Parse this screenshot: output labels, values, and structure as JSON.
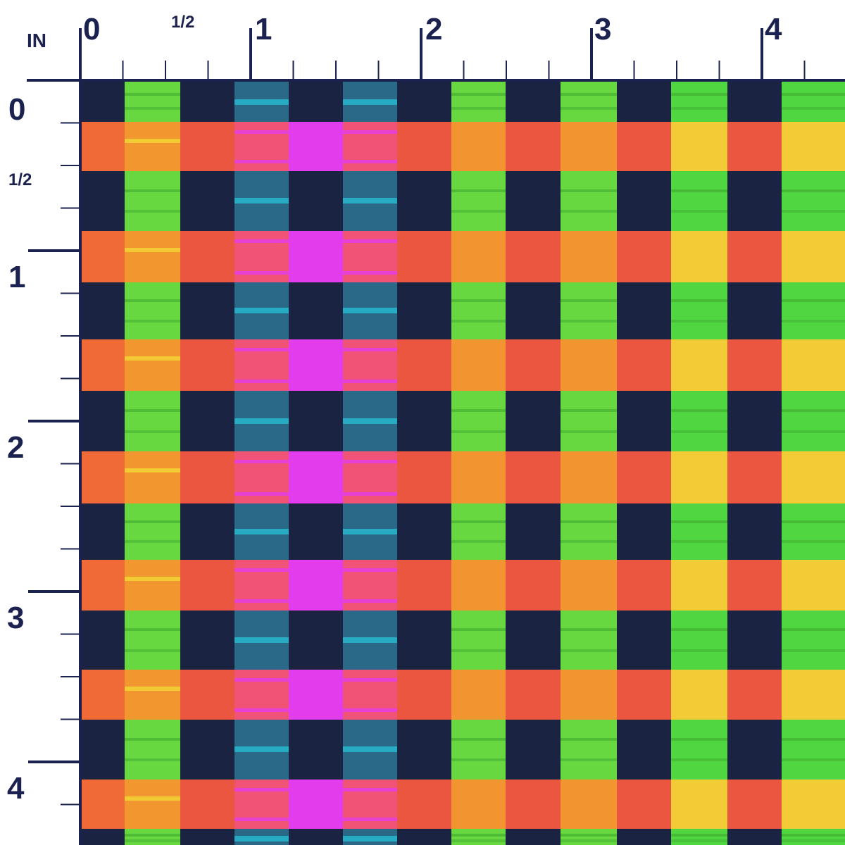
{
  "ruler": {
    "unit": "IN",
    "top": {
      "label_0": "0",
      "label_half": "1/2",
      "label_1": "1",
      "label_2": "2",
      "label_3": "3",
      "label_4": "4"
    },
    "left": {
      "label_0": "0",
      "label_half": "1/2",
      "label_1": "1",
      "label_2": "2",
      "label_3": "3",
      "label_4": "4"
    },
    "color": "#1b2250"
  },
  "pattern": {
    "name": "plaid",
    "colors": {
      "navy": "#1b2342",
      "orange": "#ef6a37",
      "coral": "#ea5242",
      "lime": "#67d840",
      "teal": "#2a6a88",
      "cyan": "#27c7dc",
      "magenta": "#e33cec",
      "pink": "#f0527a",
      "amber": "#f29a30",
      "yellow": "#f2dc36",
      "green": "#4fd640"
    }
  }
}
